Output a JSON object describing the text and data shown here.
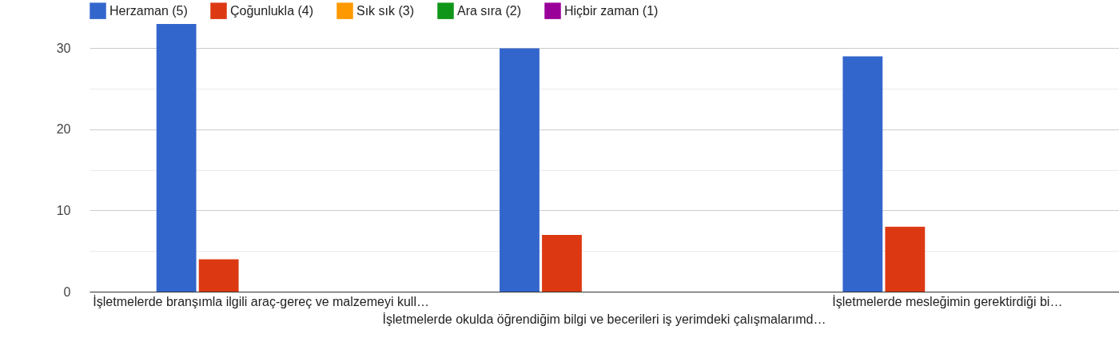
{
  "chart_data": {
    "type": "bar",
    "categories": [
      "İşletmelerde branşımla ilgili araç-gereç ve malzemeyi kull…",
      "İşletmelerde okulda öğrendiğim bilgi ve becerileri iş yerimdeki çalışmalarımd…",
      "İşletmelerde mesleğimin gerektirdiği bi…"
    ],
    "series": [
      {
        "name": "Herzaman (5)",
        "color": "#3366cc",
        "values": [
          33,
          30,
          29
        ]
      },
      {
        "name": "Çoğunlukla (4)",
        "color": "#dc3912",
        "values": [
          4,
          7,
          8
        ]
      },
      {
        "name": "Sık sık (3)",
        "color": "#ff9900",
        "values": [
          0,
          0,
          0
        ]
      },
      {
        "name": "Ara sıra (2)",
        "color": "#109618",
        "values": [
          0,
          0,
          0
        ]
      },
      {
        "name": "Hiçbir zaman (1)",
        "color": "#990099",
        "values": [
          0,
          0,
          0
        ]
      }
    ],
    "ylim": [
      0,
      33
    ],
    "yticks": [
      0,
      {
        "value": 5,
        "label": null
      },
      10,
      {
        "value": 15,
        "label": null
      },
      20,
      {
        "value": 25,
        "label": null
      },
      30
    ],
    "grid": "y",
    "legend": "top"
  }
}
